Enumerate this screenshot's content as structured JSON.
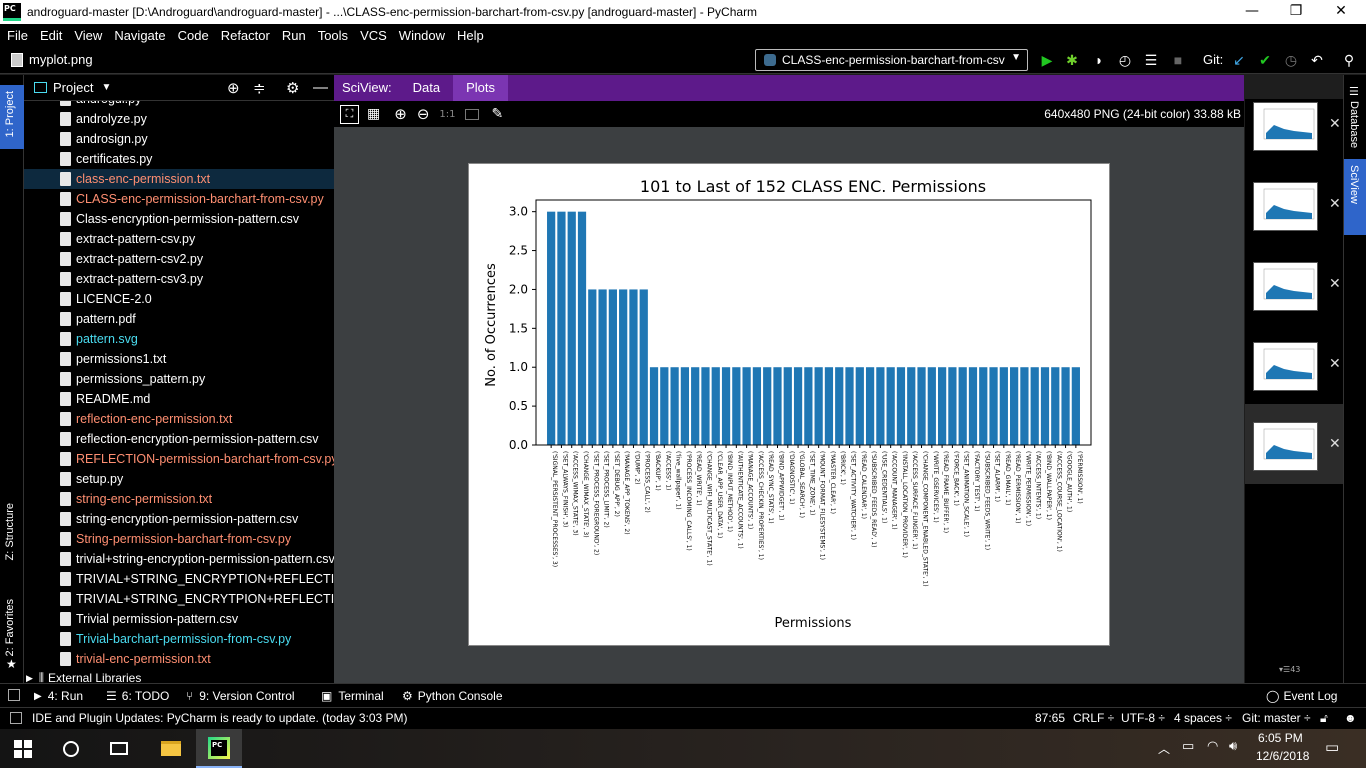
{
  "window": {
    "title": "androguard-master [D:\\Androguard\\androguard-master] - ...\\CLASS-enc-permission-barchart-from-csv.py [androguard-master] - PyCharm",
    "minimize": "—",
    "maximize": "❐",
    "close": "✕"
  },
  "menu": [
    "File",
    "Edit",
    "View",
    "Navigate",
    "Code",
    "Refactor",
    "Run",
    "Tools",
    "VCS",
    "Window",
    "Help"
  ],
  "navbar": {
    "file": "myplot.png",
    "run_config": "CLASS-enc-permission-barchart-from-csv",
    "git_label": "Git:"
  },
  "left_tabs": {
    "project": "1: Project",
    "structure": "Z: Structure",
    "favorites": "2: Favorites"
  },
  "project": {
    "title": "Project",
    "files": [
      {
        "name": "androgui.py",
        "color": "def"
      },
      {
        "name": "androlyze.py",
        "color": "def"
      },
      {
        "name": "androsign.py",
        "color": "def"
      },
      {
        "name": "certificates.py",
        "color": "def"
      },
      {
        "name": "class-enc-permission.txt",
        "color": "mod"
      },
      {
        "name": "CLASS-enc-permission-barchart-from-csv.py",
        "color": "mod"
      },
      {
        "name": "Class-encryption-permission-pattern.csv",
        "color": "def"
      },
      {
        "name": "extract-pattern-csv.py",
        "color": "def"
      },
      {
        "name": "extract-pattern-csv2.py",
        "color": "def"
      },
      {
        "name": "extract-pattern-csv3.py",
        "color": "def"
      },
      {
        "name": "LICENCE-2.0",
        "color": "def"
      },
      {
        "name": "pattern.pdf",
        "color": "def"
      },
      {
        "name": "pattern.svg",
        "color": "cyan"
      },
      {
        "name": "permissions1.txt",
        "color": "def"
      },
      {
        "name": "permissions_pattern.py",
        "color": "def"
      },
      {
        "name": "README.md",
        "color": "def"
      },
      {
        "name": "reflection-enc-permission.txt",
        "color": "mod"
      },
      {
        "name": "reflection-encryption-permission-pattern.csv",
        "color": "def"
      },
      {
        "name": "REFLECTION-permission-barchart-from-csv.py",
        "color": "mod"
      },
      {
        "name": "setup.py",
        "color": "def"
      },
      {
        "name": "string-enc-permission.txt",
        "color": "mod"
      },
      {
        "name": "string-encryption-permission-pattern.csv",
        "color": "def"
      },
      {
        "name": "String-permission-barchart-from-csv.py",
        "color": "mod"
      },
      {
        "name": "trivial+string-encryption-permission-pattern.csv",
        "color": "def"
      },
      {
        "name": "TRIVIAL+STRING_ENCRYPTION+REFLECTION+C",
        "color": "def"
      },
      {
        "name": "TRIVIAL+STRING_ENCRYTPION+REFLECTION_AP",
        "color": "def"
      },
      {
        "name": "Trivial permission-pattern.csv",
        "color": "def"
      },
      {
        "name": "Trivial-barchart-permission-from-csv.py",
        "color": "cyan"
      },
      {
        "name": "trivial-enc-permission.txt",
        "color": "mod"
      }
    ],
    "external": "External Libraries"
  },
  "sciview": {
    "label": "SciView:",
    "tab_data": "Data",
    "tab_plots": "Plots",
    "image_info": "640x480 PNG (24-bit color) 33.88 kB",
    "zoom_label": "1:1",
    "thumb_count": "43"
  },
  "right_tabs": {
    "database": "Database",
    "sciview": "SciView"
  },
  "chart_data": {
    "type": "bar",
    "title": "101 to Last of 152 CLASS ENC. Permissions",
    "xlabel": "Permissions",
    "ylabel": "No. of Occurrences",
    "ylim": [
      0,
      3.15
    ],
    "yticks": [
      "0.0",
      "0.5",
      "1.0",
      "1.5",
      "2.0",
      "2.5",
      "3.0"
    ],
    "color": "#1f77b4",
    "categories": [
      "('SIGNAL_PERSISTENT_PROCESSES', 3)",
      "('SET_ALWAYS_FINISH', 3)",
      "('ACCESS_WIMAX_STATE', 3)",
      "('CHANGE_WIMAX_STATE', 3)",
      "('SET_PROCESS_FOREGROUND', 2)",
      "('SET_PROCESS_LIMIT', 2)",
      "('SET_DEBUG_APP', 2)",
      "('MANAGE_APP_TOKENS', 2)",
      "('DUMP', 2)",
      "('PROCESS_CALL', 2)",
      "('BACKUP', 1)",
      "('ACCESS', 1)",
      "('live_wallpaper', 1)",
      "('PROCESS_INCOMING_CALLS', 1)",
      "('READ_WRITE', 1)",
      "('CHANGE_WIFI_MULTICAST_STATE', 1)",
      "('CLEAR_APP_USER_DATA', 1)",
      "('BIND_INPUT_METHOD', 1)",
      "('AUTHENTICATE_ACCOUNTS', 1)",
      "('MANAGE_ACCOUNTS', 1)",
      "('ACCESS_CHECKIN_PROPERTIES', 1)",
      "('READ_SYNC_STATS', 1)",
      "('BIND_APPWIDGET', 1)",
      "('DIAGNOSTIC', 1)",
      "('GLOBAL_SEARCH', 1)",
      "('SET_TIME_ZONE', 1)",
      "('MOUNT_FORMAT_FILESYSTEMS', 1)",
      "('MASTER_CLEAR', 1)",
      "('BRICK', 1)",
      "('SET_ACTIVITY_WATCHER', 1)",
      "('READ_CALENDAR', 1)",
      "('SUBSCRIBED_FEEDS_READ', 1)",
      "('USE_CREDENTIALS', 1)",
      "('ACCOUNT_MANAGER', 1)",
      "('INSTALL_LOCATION_PROVIDER', 1)",
      "('ACCESS_SURFACE_FLINGER', 1)",
      "('CHANGE_COMPONENT_ENABLED_STATE', 1)",
      "('WRITE_GSERVICES', 1)",
      "('READ_FRAME_BUFFER', 1)",
      "('FORCE_BACK', 1)",
      "('SET_ANIMATION_SCALE', 1)",
      "('FACTORY_TEST', 1)",
      "('SUBSCRIBED_FEEDS_WRITE', 1)",
      "('SET_ALARM', 1)",
      "('READ_GMAIL', 1)",
      "('READ_PERMISSION', 1)",
      "('WRITE_PERMISSION', 1)",
      "('ACCESS_INTENTS', 1)",
      "('BIND_WALLPAPER', 1)",
      "('ACCESS_COURSE_LOCATION', 1)",
      "('GOOGLE_AUTH', 1)",
      "('PERMISSION', 1)"
    ],
    "values": [
      3,
      3,
      3,
      3,
      2,
      2,
      2,
      2,
      2,
      2,
      1,
      1,
      1,
      1,
      1,
      1,
      1,
      1,
      1,
      1,
      1,
      1,
      1,
      1,
      1,
      1,
      1,
      1,
      1,
      1,
      1,
      1,
      1,
      1,
      1,
      1,
      1,
      1,
      1,
      1,
      1,
      1,
      1,
      1,
      1,
      1,
      1,
      1,
      1,
      1,
      1,
      1
    ]
  },
  "bottom_tools": {
    "run": "4: Run",
    "todo": "6: TODO",
    "vcs": "9: Version Control",
    "terminal": "Terminal",
    "python_console": "Python Console",
    "event_log": "Event Log"
  },
  "status": {
    "message": "IDE and Plugin Updates: PyCharm is ready to update. (today 3:03 PM)",
    "position": "87:65",
    "line_sep": "CRLF ÷",
    "encoding": "UTF-8 ÷",
    "indent": "4 spaces ÷",
    "git": "Git: master ÷"
  },
  "taskbar": {
    "time": "6:05 PM",
    "date": "12/6/2018"
  }
}
